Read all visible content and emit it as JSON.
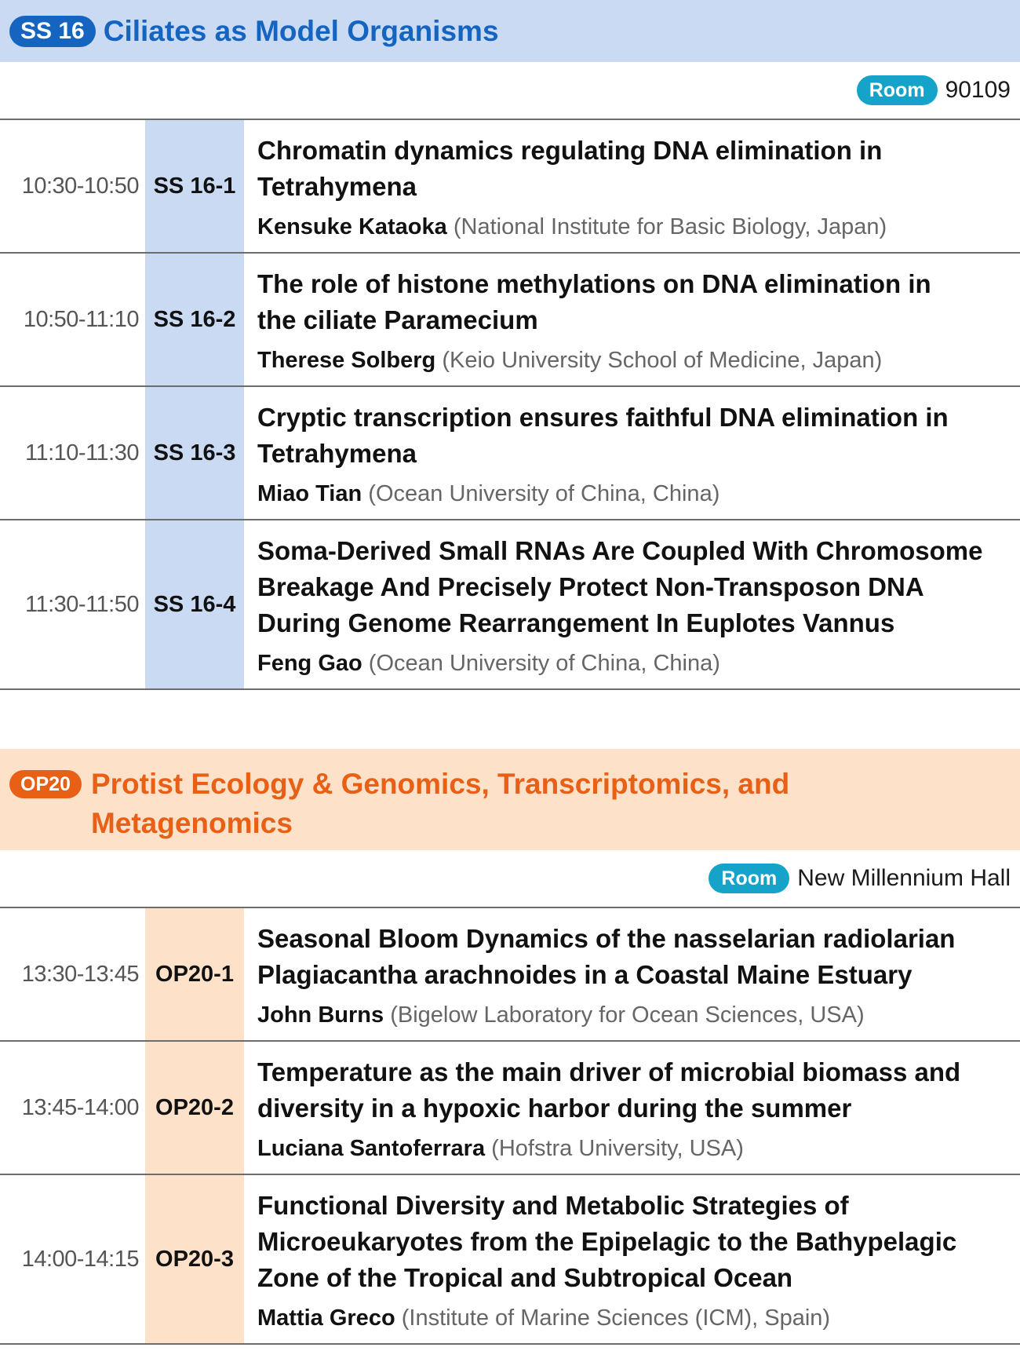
{
  "sessions": [
    {
      "id": "SS 16",
      "title": "Ciliates as Model Organisms",
      "room_label": "Room",
      "room": "90109",
      "colors": {
        "accent": "#1565c0",
        "band": "#c9daf2"
      },
      "talks": [
        {
          "time": "10:30-10:50",
          "code": "SS 16-1",
          "title_lines": [
            "Chromatin dynamics regulating DNA elimination in",
            "Tetrahymena"
          ],
          "speaker": "Kensuke Kataoka",
          "affiliation": "(National Institute for Basic Biology, Japan)"
        },
        {
          "time": "10:50-11:10",
          "code": "SS 16-2",
          "title_lines": [
            "The role of histone methylations on DNA elimination in",
            "the ciliate Paramecium"
          ],
          "speaker": "Therese Solberg",
          "affiliation": "(Keio University School of Medicine, Japan)"
        },
        {
          "time": "11:10-11:30",
          "code": "SS 16-3",
          "title_lines": [
            "Cryptic transcription ensures faithful DNA elimination in",
            "Tetrahymena"
          ],
          "speaker": "Miao Tian",
          "affiliation": "(Ocean University of China, China)"
        },
        {
          "time": "11:30-11:50",
          "code": "SS 16-4",
          "title_lines": [
            "Soma-Derived Small RNAs Are Coupled With Chromosome",
            "Breakage And Precisely Protect Non-Transposon DNA",
            "During Genome Rearrangement In Euplotes Vannus"
          ],
          "speaker": "Feng Gao",
          "affiliation": "(Ocean University of China, China)"
        }
      ]
    },
    {
      "id": "OP20",
      "title_lines": [
        "Protist Ecology & Genomics, Transcriptomics, and",
        "Metagenomics"
      ],
      "room_label": "Room",
      "room": "New Millennium Hall",
      "colors": {
        "accent": "#e85f16",
        "band": "#fde2c9"
      },
      "talks": [
        {
          "time": "13:30-13:45",
          "code": "OP20-1",
          "title_lines": [
            "Seasonal Bloom Dynamics of the nasselarian radiolarian",
            "Plagiacantha arachnoides in a Coastal Maine Estuary"
          ],
          "speaker": "John Burns",
          "affiliation": "(Bigelow Laboratory for Ocean Sciences, USA)"
        },
        {
          "time": "13:45-14:00",
          "code": "OP20-2",
          "title_lines": [
            "Temperature as the main driver of microbial biomass and",
            "diversity in a hypoxic harbor during the summer"
          ],
          "speaker": "Luciana Santoferrara",
          "affiliation": "(Hofstra University, USA)"
        },
        {
          "time": "14:00-14:15",
          "code": "OP20-3",
          "title_lines": [
            "Functional Diversity and Metabolic Strategies of",
            "Microeukaryotes from the Epipelagic to the Bathypelagic",
            "Zone of the Tropical and Subtropical Ocean"
          ],
          "speaker": "Mattia Greco",
          "affiliation": "(Institute of Marine Sciences (ICM), Spain)"
        }
      ]
    }
  ]
}
